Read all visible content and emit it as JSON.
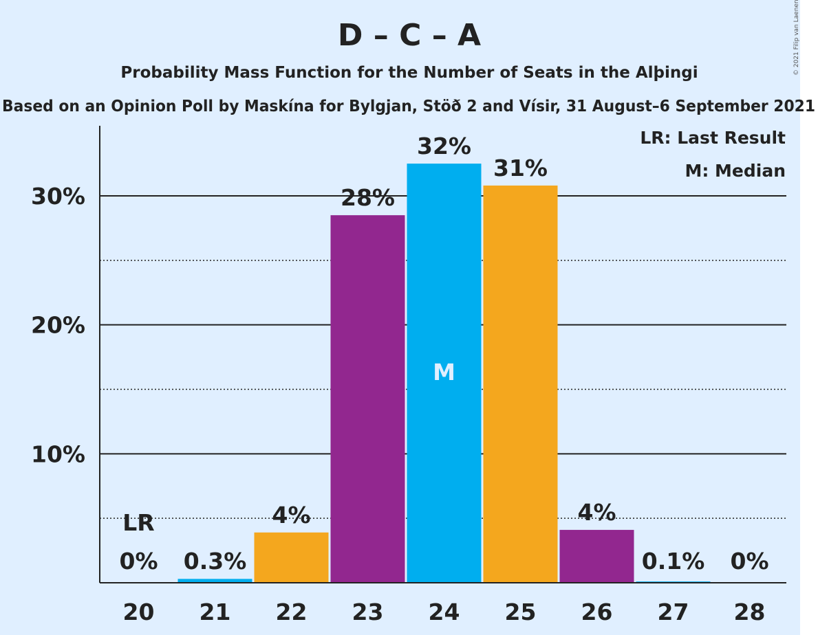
{
  "chart_data": {
    "type": "bar",
    "title": "D – C – A",
    "subtitle": "Probability Mass Function for the Number of Seats in the Alþingi",
    "caption": "Based on an Opinion Poll by Maskína for Bylgjan, Stöð 2 and Vísir, 31 August–6 September 2021",
    "copyright": "© 2021 Filip van Laenen",
    "categories": [
      "20",
      "21",
      "22",
      "23",
      "24",
      "25",
      "26",
      "27",
      "28"
    ],
    "values": [
      0,
      0.3,
      3.9,
      28.5,
      32.5,
      30.8,
      4.1,
      0.1,
      0
    ],
    "value_labels": [
      "0%",
      "0.3%",
      "4%",
      "28%",
      "32%",
      "31%",
      "4%",
      "0.1%",
      "0%"
    ],
    "bar_colors": [
      "#00AEEF",
      "#00AEEF",
      "#F4A71E",
      "#92278F",
      "#00AEEF",
      "#F4A71E",
      "#92278F",
      "#00AEEF",
      "#00AEEF"
    ],
    "y_ticks": [
      10,
      20,
      30
    ],
    "y_tick_labels": [
      "10%",
      "20%",
      "30%"
    ],
    "minor_gridlines": [
      5,
      15,
      25
    ],
    "ylim": [
      0,
      35.4
    ],
    "last_result_category": "20",
    "last_result_label": "LR",
    "median_category": "24",
    "median_label": "M",
    "legend": {
      "last_result": "LR: Last Result",
      "median": "M: Median",
      "position": "top-right"
    },
    "background_color": "#E0EFFF",
    "grid": true
  }
}
